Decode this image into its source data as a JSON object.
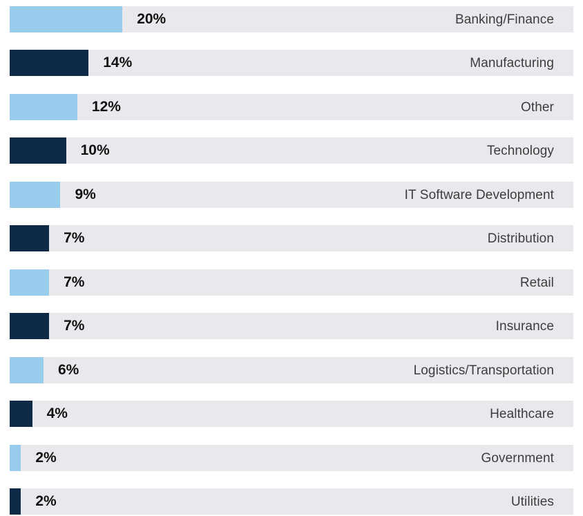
{
  "chart_data": {
    "type": "bar",
    "orientation": "horizontal",
    "categories": [
      "Banking/Finance",
      "Manufacturing",
      "Other",
      "Technology",
      "IT Software Development",
      "Distribution",
      "Retail",
      "Insurance",
      "Logistics/Transportation",
      "Healthcare",
      "Government",
      "Utilities"
    ],
    "values": [
      20,
      14,
      12,
      10,
      9,
      7,
      7,
      7,
      6,
      4,
      2,
      2
    ],
    "value_labels": [
      "20%",
      "14%",
      "12%",
      "10%",
      "9%",
      "7%",
      "7%",
      "7%",
      "6%",
      "4%",
      "2%",
      "2%"
    ],
    "unit": "%",
    "xlim": [
      0,
      100
    ],
    "title": "",
    "xlabel": "",
    "ylabel": "",
    "grid": false,
    "colors": {
      "light_bar": "#99ccec",
      "dark_bar": "#0e2a47",
      "track": "#e9e8ec"
    },
    "bar_color_pattern": [
      "light_bar",
      "dark_bar"
    ]
  }
}
